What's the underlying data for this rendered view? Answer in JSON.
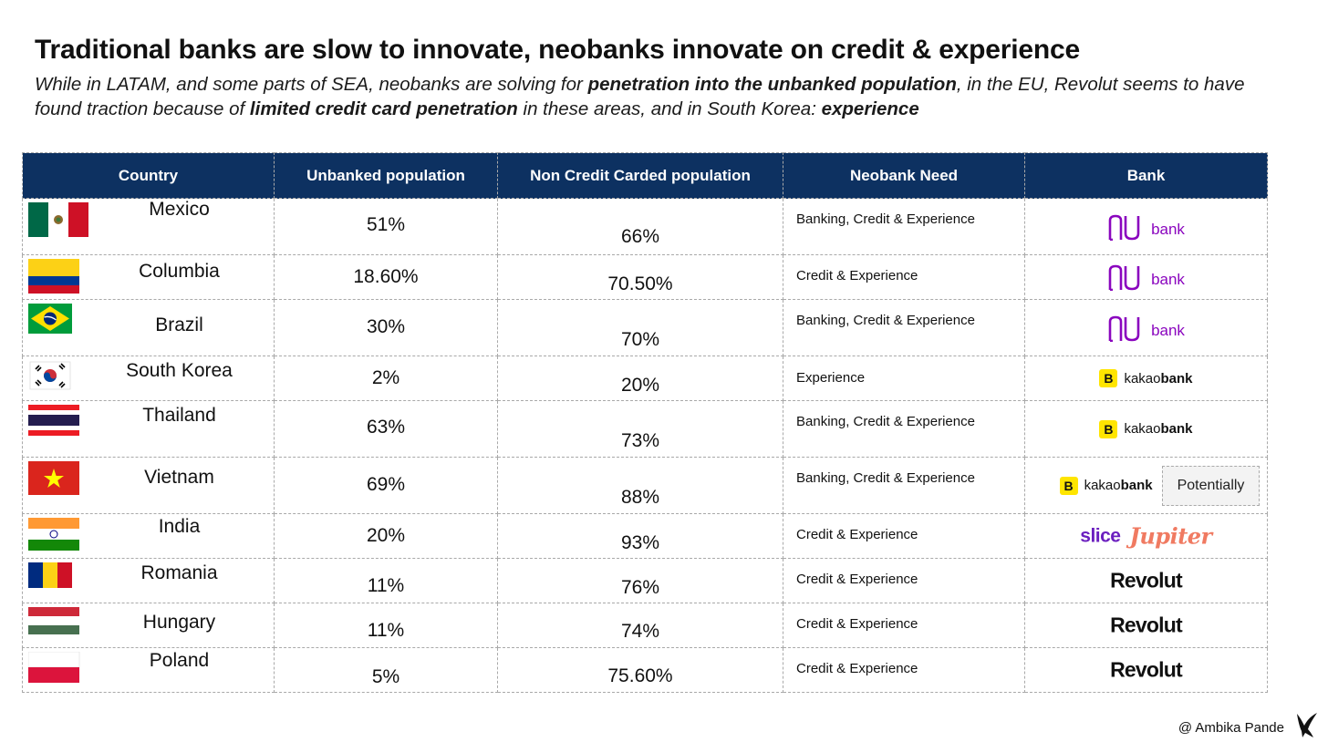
{
  "title": "Traditional banks are slow to innovate, neobanks innovate on credit & experience",
  "subtitle": {
    "part1": "While in LATAM, and some parts of SEA, neobanks are solving for ",
    "bold1": "penetration into the unbanked population",
    "part2": ", in the EU, Revolut seems to have found traction because of ",
    "bold2": "limited credit card penetration",
    "part3": " in these areas, and in South Korea: ",
    "bold3": "experience"
  },
  "table": {
    "headers": [
      "Country",
      "Unbanked population",
      "Non Credit Carded population",
      "Neobank Need",
      "Bank"
    ],
    "rows": [
      {
        "country": "Mexico",
        "flag": "mexico-flag",
        "unbanked": "51%",
        "non_credit": "66%",
        "need": "Banking, Credit & Experience",
        "bank": "nubank"
      },
      {
        "country": "Columbia",
        "flag": "colombia-flag",
        "unbanked": "18.60%",
        "non_credit": "70.50%",
        "need": "Credit & Experience",
        "bank": "nubank"
      },
      {
        "country": "Brazil",
        "flag": "brazil-flag",
        "unbanked": "30%",
        "non_credit": "70%",
        "need": "Banking, Credit & Experience",
        "bank": "nubank"
      },
      {
        "country": "South Korea",
        "flag": "south-korea-flag",
        "unbanked": "2%",
        "non_credit": "20%",
        "need": "Experience",
        "bank": "kakaobank"
      },
      {
        "country": "Thailand",
        "flag": "thailand-flag",
        "unbanked": "63%",
        "non_credit": "73%",
        "need": "Banking, Credit & Experience",
        "bank": "kakaobank"
      },
      {
        "country": "Vietnam",
        "flag": "vietnam-flag",
        "unbanked": "69%",
        "non_credit": "88%",
        "need": "Banking, Credit & Experience",
        "bank": "kakaobank",
        "note": "Potentially"
      },
      {
        "country": "India",
        "flag": "india-flag",
        "unbanked": "20%",
        "non_credit": "93%",
        "need": "Credit & Experience",
        "bank": "slice-jupiter"
      },
      {
        "country": "Romania",
        "flag": "romania-flag",
        "unbanked": "11%",
        "non_credit": "76%",
        "need": "Credit & Experience",
        "bank": "revolut"
      },
      {
        "country": "Hungary",
        "flag": "hungary-flag",
        "unbanked": "11%",
        "non_credit": "74%",
        "need": "Credit & Experience",
        "bank": "revolut"
      },
      {
        "country": "Poland",
        "flag": "poland-flag",
        "unbanked": "5%",
        "non_credit": "75.60%",
        "need": "Credit & Experience",
        "bank": "revolut"
      }
    ]
  },
  "logos": {
    "nubank": "bank",
    "kakao_prefix": "kakao",
    "kakao_bold": "bank",
    "kakao_mark": "B",
    "slice": "slice",
    "jupiter": "Jupiter",
    "revolut": "Revolut"
  },
  "credit": "@ Ambika Pande",
  "colors": {
    "header_bg": "#0d3161",
    "nubank": "#8a05be",
    "kakao": "#ffe500",
    "slice": "#6b1fbf",
    "jupiter": "#f07a61"
  }
}
